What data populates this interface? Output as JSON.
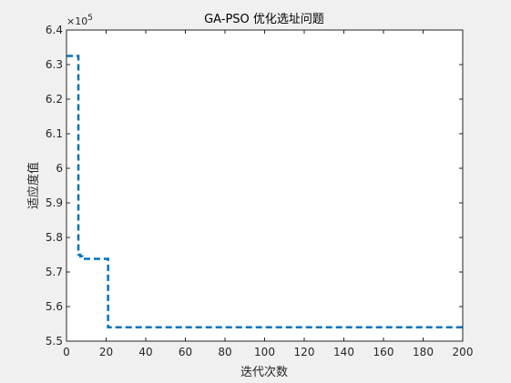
{
  "chart_data": {
    "type": "line",
    "title": "GA-PSO 优化选址问题",
    "xlabel": "迭代次数",
    "ylabel": "适应度值",
    "xlim": [
      0,
      200
    ],
    "ylim": [
      550000,
      640000
    ],
    "y_exponent_label": "×10",
    "y_exponent_power": "5",
    "x_ticks": [
      0,
      20,
      40,
      60,
      80,
      100,
      120,
      140,
      160,
      180,
      200
    ],
    "x_tick_labels": [
      "0",
      "20",
      "40",
      "60",
      "80",
      "100",
      "120",
      "140",
      "160",
      "180",
      "200"
    ],
    "y_ticks": [
      550000,
      560000,
      570000,
      580000,
      590000,
      600000,
      610000,
      620000,
      630000,
      640000
    ],
    "y_tick_labels": [
      "5.5",
      "5.6",
      "5.7",
      "5.8",
      "5.9",
      "6",
      "6.1",
      "6.2",
      "6.3",
      "6.4"
    ],
    "grid": false,
    "line_style": "dashed",
    "series": [
      {
        "color": "#0072bd",
        "step": true,
        "x": [
          0,
          5,
          6,
          7,
          8,
          20,
          21,
          200
        ],
        "y": [
          632500,
          632500,
          575000,
          574500,
          573800,
          573800,
          554000,
          554000
        ]
      }
    ]
  }
}
